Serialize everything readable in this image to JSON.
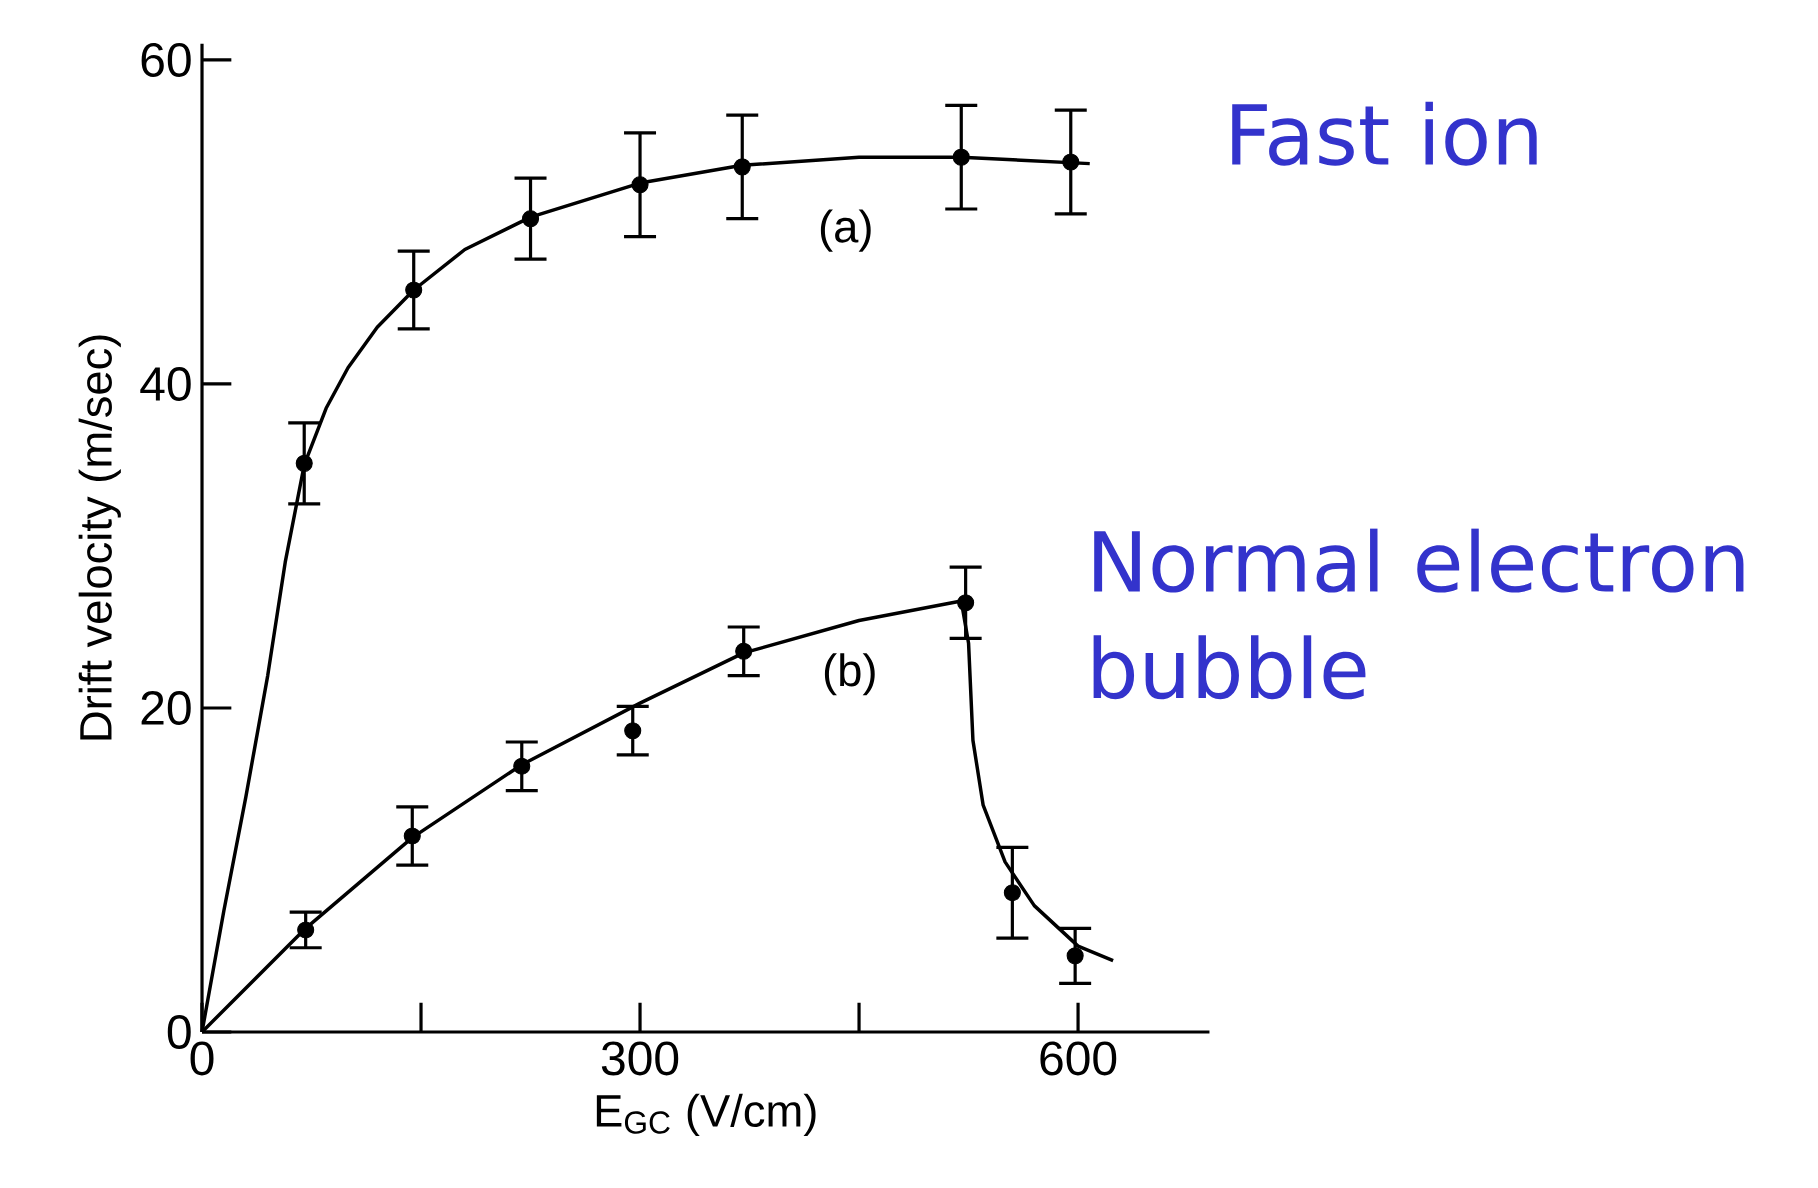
{
  "chart_data": {
    "type": "scatter",
    "xlabel": "E$_{GC}$ (V/cm)",
    "ylabel": "Drift velocity (m/sec)",
    "xlim": [
      0,
      690
    ],
    "ylim": [
      0,
      61
    ],
    "xticks": [
      0,
      {
        "value": 150,
        "label": null
      },
      300,
      {
        "value": 450,
        "label": null
      },
      600
    ],
    "yticks": [
      0,
      20,
      40,
      60
    ],
    "grid": false,
    "annotations": [
      "(a)",
      "(b)"
    ],
    "series": [
      {
        "name": "Fast ion",
        "marker": "circle",
        "color": "#000000",
        "x": [
          70,
          145,
          225,
          300,
          370,
          520,
          595
        ],
        "values": [
          35.1,
          45.8,
          50.2,
          52.3,
          53.4,
          54.0,
          53.7
        ],
        "errors": [
          2.5,
          2.4,
          2.5,
          3.2,
          3.2,
          3.2,
          3.2
        ]
      },
      {
        "type": "line",
        "marker": "none",
        "color": "#000000",
        "x": [
          0,
          15,
          30,
          45,
          57,
          70,
          85,
          100,
          120,
          145,
          180,
          225,
          300,
          370,
          450,
          520,
          608
        ],
        "values": [
          0,
          7.5,
          14.5,
          22,
          29,
          35,
          38.5,
          41,
          43.5,
          45.8,
          48.3,
          50.3,
          52.4,
          53.5,
          54,
          54,
          53.6
        ]
      },
      {
        "name": "Normal electron bubble",
        "marker": "circle",
        "color": "#000000",
        "x": [
          71,
          144,
          219,
          295,
          371,
          523,
          555,
          598
        ],
        "values": [
          6.3,
          12.1,
          16.4,
          18.6,
          23.5,
          26.5,
          8.6,
          4.7
        ],
        "errors": [
          1.1,
          1.8,
          1.5,
          1.5,
          1.5,
          2.2,
          2.8,
          1.7
        ]
      },
      {
        "type": "line",
        "marker": "none",
        "color": "#000000",
        "x": [
          0,
          71,
          144,
          219,
          300,
          371,
          450,
          520,
          525,
          528,
          535,
          550,
          570,
          600,
          624
        ],
        "values": [
          0,
          6.4,
          12,
          16.5,
          20.3,
          23.4,
          25.4,
          26.6,
          24,
          18,
          14,
          10.5,
          7.8,
          5.3,
          4.4
        ]
      }
    ]
  }
}
